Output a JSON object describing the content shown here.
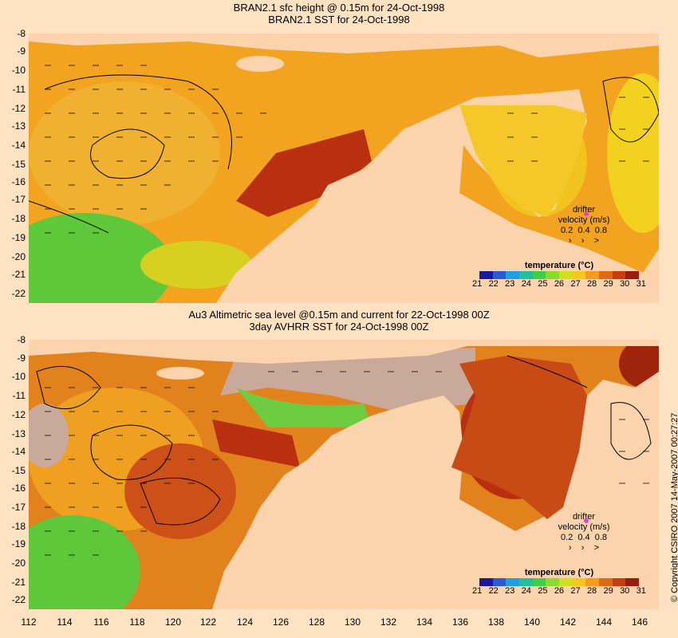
{
  "top": {
    "title_line1": "BRAN2.1 sfc height @ 0.15m for 24-Oct-1998",
    "title_line2": "BRAN2.1 SST for 24-Oct-1998"
  },
  "bottom": {
    "title_line1": "Au3 Altimetric sea level  @0.15m and current for 22-Oct-1998 00Z",
    "title_line2": "3day AVHRR SST for 24-Oct-1998 00Z"
  },
  "latitude_labels": [
    "-8",
    "-9",
    "-10",
    "-11",
    "-12",
    "-13",
    "-14",
    "-15",
    "-16",
    "-17",
    "-18",
    "-19",
    "-20",
    "-21",
    "-22"
  ],
  "longitude_labels": [
    "112",
    "114",
    "116",
    "118",
    "120",
    "122",
    "124",
    "126",
    "128",
    "130",
    "132",
    "134",
    "136",
    "138",
    "140",
    "142",
    "144",
    "146"
  ],
  "drifter": {
    "line1": "drifter",
    "line2": "velocity (m/s)",
    "speeds": "0.2  0.4  0.8"
  },
  "colorbar": {
    "title": "temperature (°C)",
    "ticks": [
      "21",
      "22",
      "23",
      "24",
      "25",
      "26",
      "27",
      "28",
      "29",
      "30",
      "31"
    ],
    "colors": [
      "#1a1aa0",
      "#2a5ad8",
      "#1f9fe0",
      "#23c0a0",
      "#3ccf4c",
      "#8adc2c",
      "#d2e01c",
      "#f6c81c",
      "#f49a1c",
      "#e06a14",
      "#c83c10",
      "#9a1c0c"
    ]
  },
  "copyright": "© Copyright CSIRO 2007  14-May-2007 00:27:27",
  "colors": {
    "background": "#ffe2c2",
    "land": "#fbd3ad",
    "warm_water": "#f0a020",
    "hot_water": "#b83010",
    "cool_water": "#5fc83a",
    "missing_data": "#c9a99a"
  }
}
